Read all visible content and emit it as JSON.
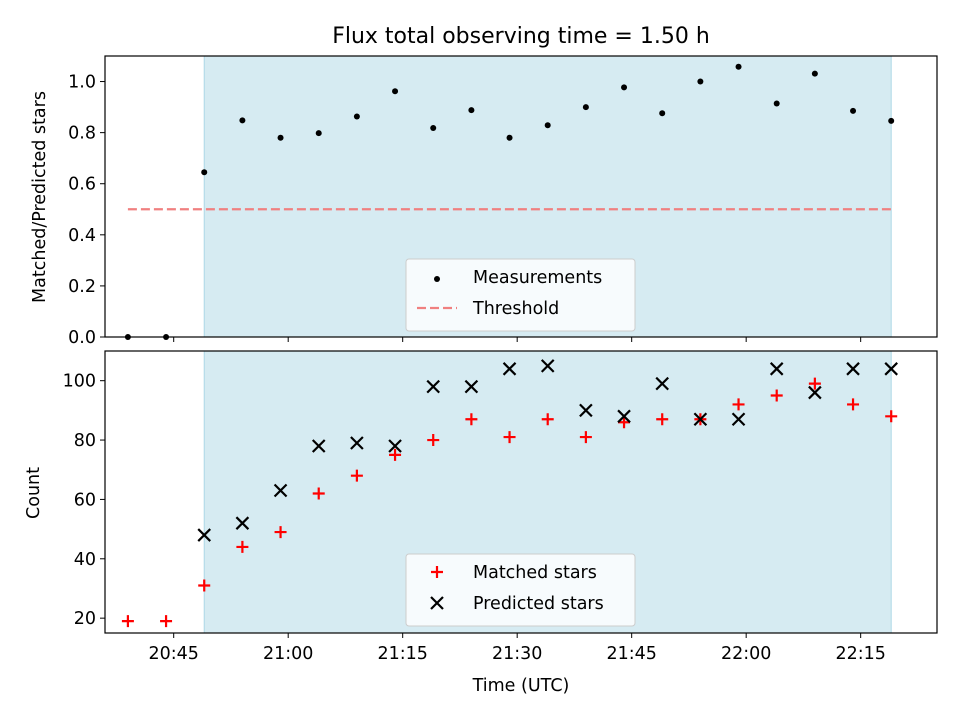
{
  "colors": {
    "shade": "#add8e6",
    "measurement": "#000000",
    "threshold": "#f08080",
    "matched": "#ff0000",
    "predicted": "#000000"
  },
  "chart_data": [
    {
      "type": "scatter",
      "title": "Flux total observing time = 1.50 h",
      "xlabel": "",
      "ylabel": "Matched/Predicted stars",
      "xlim": [
        "20:36",
        "22:25"
      ],
      "ylim": [
        0,
        1.1
      ],
      "yticks": [
        "0.0",
        "0.2",
        "0.4",
        "0.6",
        "0.8",
        "1.0"
      ],
      "shaded_span": [
        "20:49",
        "22:19"
      ],
      "series": [
        {
          "name": "Measurements",
          "marker": "dot",
          "x": [
            "20:39",
            "20:44",
            "20:49",
            "20:54",
            "20:59",
            "21:04",
            "21:09",
            "21:14",
            "21:19",
            "21:24",
            "21:29",
            "21:34",
            "21:39",
            "21:44",
            "21:49",
            "21:54",
            "21:59",
            "22:04",
            "22:09",
            "22:14",
            "22:19"
          ],
          "y": [
            0.0,
            0.0,
            0.645,
            0.848,
            0.78,
            0.798,
            0.863,
            0.962,
            0.818,
            0.888,
            0.78,
            0.829,
            0.9,
            0.977,
            0.876,
            1.0,
            1.058,
            0.914,
            1.031,
            0.885,
            0.846
          ]
        },
        {
          "name": "Threshold",
          "marker": "dashed-line",
          "x": [
            "20:39",
            "22:19"
          ],
          "y": [
            0.5,
            0.5
          ]
        }
      ],
      "legend": "lower-center"
    },
    {
      "type": "scatter",
      "title": "",
      "xlabel": "Time (UTC)",
      "ylabel": "Count",
      "xlim": [
        "20:36",
        "22:25"
      ],
      "ylim": [
        15,
        110
      ],
      "yticks": [
        "20",
        "40",
        "60",
        "80",
        "100"
      ],
      "xticks": [
        "20:45",
        "21:00",
        "21:15",
        "21:30",
        "21:45",
        "22:00",
        "22:15"
      ],
      "shaded_span": [
        "20:49",
        "22:19"
      ],
      "series": [
        {
          "name": "Matched stars",
          "marker": "plus",
          "x": [
            "20:39",
            "20:44",
            "20:49",
            "20:54",
            "20:59",
            "21:04",
            "21:09",
            "21:14",
            "21:19",
            "21:24",
            "21:29",
            "21:34",
            "21:39",
            "21:44",
            "21:49",
            "21:54",
            "21:59",
            "22:04",
            "22:09",
            "22:14",
            "22:19"
          ],
          "y": [
            19,
            19,
            31,
            44,
            49,
            62,
            68,
            75,
            80,
            87,
            81,
            87,
            81,
            86,
            87,
            87,
            92,
            95,
            99,
            92,
            88
          ]
        },
        {
          "name": "Predicted stars",
          "marker": "x",
          "x": [
            "20:49",
            "20:54",
            "20:59",
            "21:04",
            "21:09",
            "21:14",
            "21:19",
            "21:24",
            "21:29",
            "21:34",
            "21:39",
            "21:44",
            "21:49",
            "21:54",
            "21:59",
            "22:04",
            "22:09",
            "22:14",
            "22:19"
          ],
          "y": [
            48,
            52,
            63,
            78,
            79,
            78,
            98,
            98,
            104,
            105,
            90,
            88,
            99,
            87,
            87,
            104,
            96,
            104,
            104
          ]
        }
      ],
      "legend": "lower-center"
    }
  ]
}
